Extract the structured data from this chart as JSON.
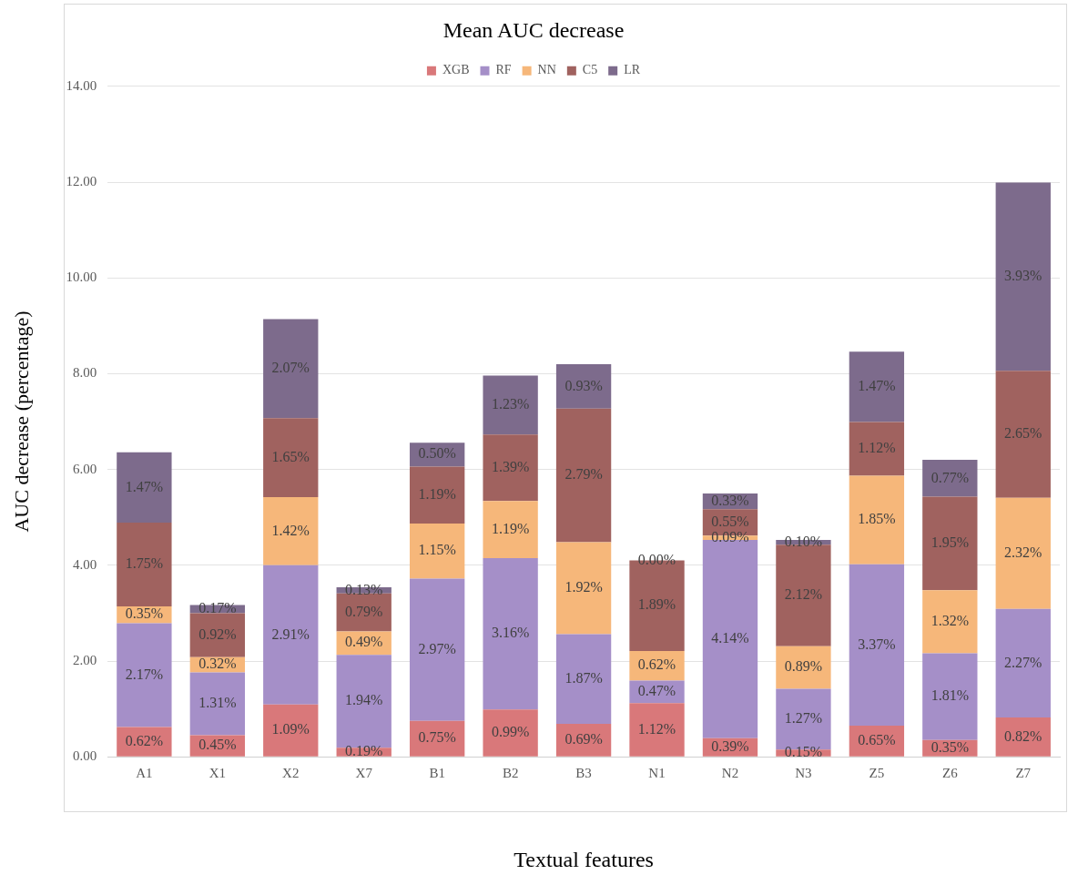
{
  "chart_data": {
    "type": "bar",
    "title": "Mean AUC decrease",
    "xlabel": "Textual features",
    "ylabel": "AUC decrease (percentage)",
    "categories": [
      "A1",
      "X1",
      "X2",
      "X7",
      "B1",
      "B2",
      "B3",
      "N1",
      "N2",
      "N3",
      "Z5",
      "Z6",
      "Z7"
    ],
    "stacked": true,
    "grid": "y",
    "legend": "top",
    "ylim": [
      0,
      14
    ],
    "yticks": [
      {
        "value": 0,
        "label": "0.00"
      },
      {
        "value": 2,
        "label": "2.00"
      },
      {
        "value": 4,
        "label": "4.00"
      },
      {
        "value": 6,
        "label": "6.00"
      },
      {
        "value": 8,
        "label": "8.00"
      },
      {
        "value": 10,
        "label": "10.00"
      },
      {
        "value": 12,
        "label": "12.00"
      },
      {
        "value": 14,
        "label": "14.00"
      }
    ],
    "series": [
      {
        "name": "XGB",
        "color": "#d9787a",
        "values": [
          0.62,
          0.45,
          1.09,
          0.19,
          0.75,
          0.99,
          0.69,
          1.12,
          0.39,
          0.15,
          0.65,
          0.35,
          0.82
        ],
        "value_labels": [
          "0.62%",
          "0.45%",
          "1.09%",
          "0.19%",
          "0.75%",
          "0.99%",
          "0.69%",
          "1.12%",
          "0.39%",
          "0.15%",
          "0.65%",
          "0.35%",
          "0.82%"
        ]
      },
      {
        "name": "RF",
        "color": "#a58fc8",
        "values": [
          2.17,
          1.31,
          2.91,
          1.94,
          2.97,
          3.16,
          1.87,
          0.47,
          4.14,
          1.27,
          3.37,
          1.81,
          2.27
        ],
        "value_labels": [
          "2.17%",
          "1.31%",
          "2.91%",
          "1.94%",
          "2.97%",
          "3.16%",
          "1.87%",
          "0.47%",
          "4.14%",
          "1.27%",
          "3.37%",
          "1.81%",
          "2.27%"
        ]
      },
      {
        "name": "NN",
        "color": "#f6b77a",
        "values": [
          0.35,
          0.32,
          1.42,
          0.49,
          1.15,
          1.19,
          1.92,
          0.62,
          0.09,
          0.89,
          1.85,
          1.32,
          2.32
        ],
        "value_labels": [
          "0.35%",
          "0.32%",
          "1.42%",
          "0.49%",
          "1.15%",
          "1.19%",
          "1.92%",
          "0.62%",
          "0.09%",
          "0.89%",
          "1.85%",
          "1.32%",
          "2.32%"
        ]
      },
      {
        "name": "C5",
        "color": "#a0625f",
        "values": [
          1.75,
          0.92,
          1.65,
          0.79,
          1.19,
          1.39,
          2.79,
          1.89,
          0.55,
          2.12,
          1.12,
          1.95,
          2.65
        ],
        "value_labels": [
          "1.75%",
          "0.92%",
          "1.65%",
          "0.79%",
          "1.19%",
          "1.39%",
          "2.79%",
          "1.89%",
          "0.55%",
          "2.12%",
          "1.12%",
          "1.95%",
          "2.65%"
        ]
      },
      {
        "name": "LR",
        "color": "#7d6b8c",
        "values": [
          1.47,
          0.17,
          2.07,
          0.13,
          0.5,
          1.23,
          0.93,
          0.0,
          0.33,
          0.1,
          1.47,
          0.77,
          3.93
        ],
        "value_labels": [
          "1.47%",
          "0.17%",
          "2.07%",
          "0.13%",
          "0.50%",
          "1.23%",
          "0.93%",
          "0.00%",
          "0.33%",
          "0.10%",
          "1.47%",
          "0.77%",
          "3.93%"
        ]
      }
    ]
  }
}
